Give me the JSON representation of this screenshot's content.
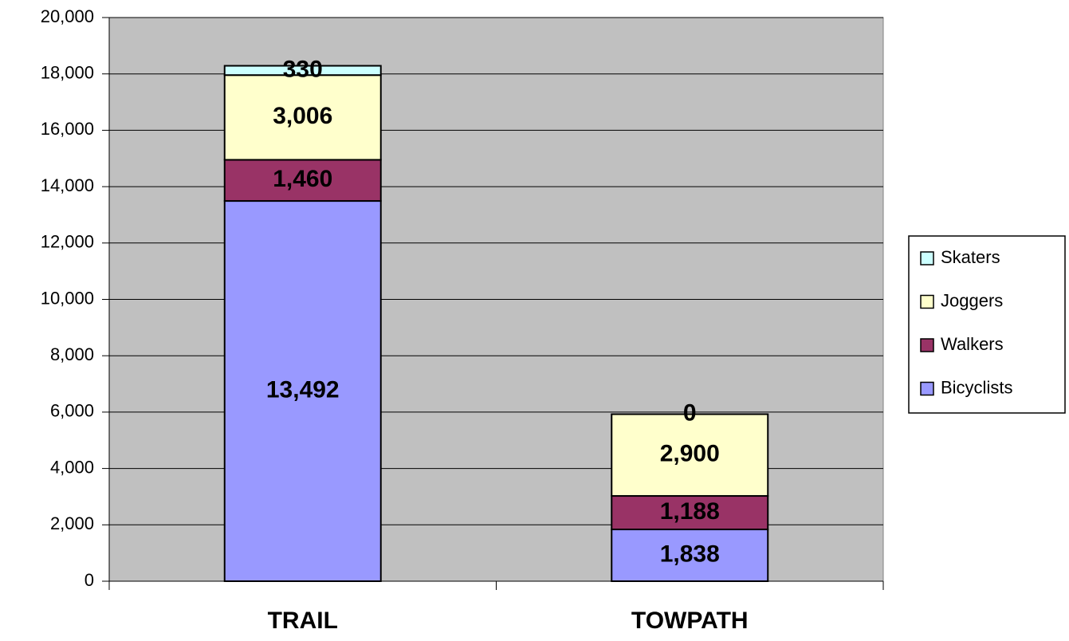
{
  "chart_data": {
    "type": "stacked_bar",
    "categories": [
      "TRAIL",
      "TOWPATH"
    ],
    "series": [
      {
        "name": "Bicyclists",
        "color": "#9999ff",
        "values": [
          13492,
          1838
        ],
        "value_labels": [
          "13,492",
          "1,838"
        ]
      },
      {
        "name": "Walkers",
        "color": "#993366",
        "values": [
          1460,
          1188
        ],
        "value_labels": [
          "1,460",
          "1,188"
        ]
      },
      {
        "name": "Joggers",
        "color": "#ffffcc",
        "values": [
          3006,
          2900
        ],
        "value_labels": [
          "3,006",
          "2,900"
        ]
      },
      {
        "name": "Skaters",
        "color": "#ccffff",
        "values": [
          330,
          0
        ],
        "value_labels": [
          "330",
          "0"
        ]
      }
    ],
    "ylim": [
      0,
      20000
    ],
    "yticks": [
      0,
      {
        "value": 2000,
        "label": "2,000"
      },
      {
        "value": 4000,
        "label": "4,000"
      },
      {
        "value": 6000,
        "label": "6,000"
      },
      {
        "value": 8000,
        "label": "8,000"
      },
      {
        "value": 10000,
        "label": "10,000"
      },
      {
        "value": 12000,
        "label": "12,000"
      },
      {
        "value": 14000,
        "label": "14,000"
      },
      {
        "value": 16000,
        "label": "16,000"
      },
      {
        "value": 18000,
        "label": "18,000"
      },
      {
        "value": 20000,
        "label": "20,000"
      }
    ],
    "grid": true,
    "legend": "right"
  }
}
